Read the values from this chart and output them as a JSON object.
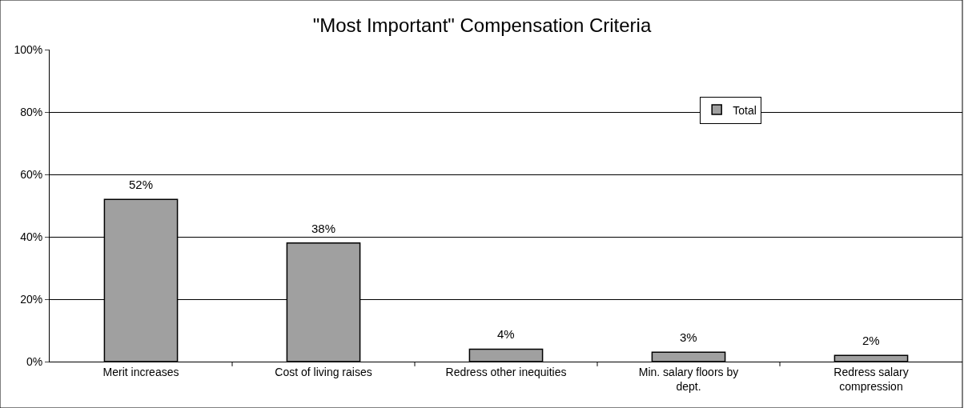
{
  "chart_data": {
    "type": "bar",
    "title": "\"Most Important\" Compensation Criteria",
    "categories": [
      "Merit increases",
      "Cost of living raises",
      "Redress other inequities",
      "Min. salary floors by dept.",
      "Redress salary compression"
    ],
    "series": [
      {
        "name": "Total",
        "color": "#a0a0a0",
        "values": [
          52,
          38,
          4,
          3,
          2
        ],
        "value_labels": [
          "52%",
          "38%",
          "4%",
          "3%",
          "2%"
        ]
      }
    ],
    "ylim": [
      0,
      100
    ],
    "yticks": [
      {
        "value": 0,
        "label": "0%"
      },
      {
        "value": 20,
        "label": "20%"
      },
      {
        "value": 40,
        "label": "40%"
      },
      {
        "value": 60,
        "label": "60%"
      },
      {
        "value": 80,
        "label": "80%"
      },
      {
        "value": 100,
        "label": "100%"
      }
    ],
    "grid": "y",
    "legend": "top right"
  }
}
